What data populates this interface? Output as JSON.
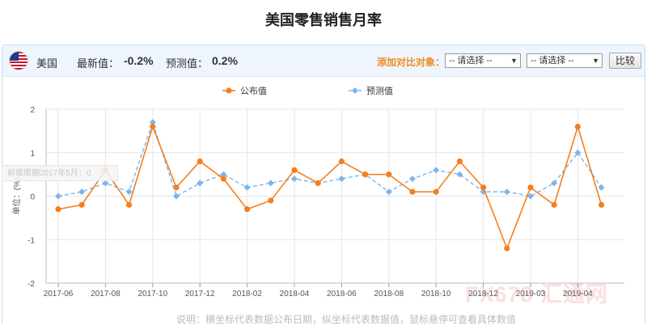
{
  "page": {
    "title": "美国零售销售月率"
  },
  "info": {
    "country": "美国",
    "latest_label": "最新值：",
    "latest_value": "-0.2%",
    "forecast_label": "预测值：",
    "forecast_value": "0.2%",
    "compare_label": "添加对比对象：",
    "select_1": "-- 请选择 --",
    "select_2": "-- 请选择 --",
    "compare_button": "比较"
  },
  "tooltip_ghost": "前值周期2017年5月：0.",
  "watermark": "FX678 汇通网",
  "footer_note": "说明：横坐标代表数据公布日期，纵坐标代表数据值，鼠标悬停可查看具体数值",
  "colors": {
    "actual": "#f57f1f",
    "forecast": "#7cb5ec",
    "grid": "#e6e6e6",
    "accent": "#f08c1e"
  },
  "chart_data": {
    "type": "line",
    "title": "美国零售销售月率",
    "ylabel": "单位：(%)",
    "ylim": [
      -2,
      2
    ],
    "yticks": [
      2,
      1,
      0,
      -1,
      -2
    ],
    "x_tick_labels": [
      "2017-06",
      "2017-08",
      "2017-10",
      "2017-12",
      "2018-02",
      "2018-04",
      "2018-06",
      "2018-08",
      "2018-10",
      "2018-12",
      "2019-03",
      "2019-04"
    ],
    "legend_position": "top-center",
    "series": [
      {
        "name": "公布值",
        "color": "#f57f1f",
        "values": [
          -0.3,
          -0.2,
          0.6,
          -0.2,
          1.6,
          0.2,
          0.8,
          0.4,
          -0.3,
          -0.1,
          0.6,
          0.3,
          0.8,
          0.5,
          0.5,
          0.1,
          0.1,
          0.8,
          0.2,
          -1.2,
          0.2,
          -0.2,
          1.6,
          -0.2
        ]
      },
      {
        "name": "预测值",
        "color": "#7cb5ec",
        "values": [
          0.0,
          0.1,
          0.3,
          0.1,
          1.7,
          0.0,
          0.3,
          0.5,
          0.2,
          0.3,
          0.4,
          0.3,
          0.4,
          0.5,
          0.1,
          0.4,
          0.6,
          0.5,
          0.1,
          0.1,
          0.0,
          0.3,
          1.0,
          0.2
        ]
      }
    ]
  }
}
